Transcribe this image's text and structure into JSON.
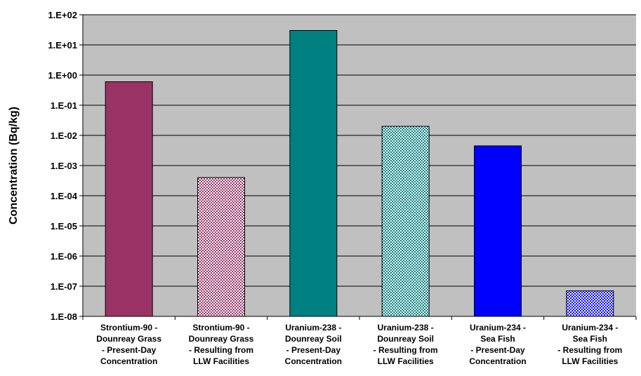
{
  "chart_data": {
    "type": "bar",
    "title": "",
    "xlabel": "",
    "ylabel": "Concentration (Bq/kg)",
    "y_scale": "log",
    "ylim": [
      1e-08,
      100
    ],
    "y_ticks": [
      "1.E-08",
      "1.E-07",
      "1.E-06",
      "1.E-05",
      "1.E-04",
      "1.E-03",
      "1.E-02",
      "1.E-01",
      "1.E+00",
      "1.E+01",
      "1.E+02"
    ],
    "grid": true,
    "legend": "none",
    "plot_background": "#c0c0c0",
    "categories": [
      {
        "lines": [
          "Strontium-90 -",
          "Dounreay Grass",
          "- Present-Day",
          "Concentration"
        ],
        "value": 0.6,
        "color": "#993366",
        "pattern": "solid"
      },
      {
        "lines": [
          "Strontium-90 -",
          "Dounreay Grass",
          "- Resulting from",
          "LLW Facilities"
        ],
        "value": 0.0004,
        "color": "#993366",
        "pattern": "dotted"
      },
      {
        "lines": [
          "Uranium-238 -",
          "Dounreay Soil",
          "- Present-Day",
          "Concentration"
        ],
        "value": 30,
        "color": "#008080",
        "pattern": "solid"
      },
      {
        "lines": [
          "Uranium-238 -",
          "Dounreay Soil",
          "- Resulting from",
          "LLW Facilities"
        ],
        "value": 0.02,
        "color": "#008080",
        "pattern": "dotted"
      },
      {
        "lines": [
          "Uranium-234 -",
          "Sea Fish",
          "- Present-Day",
          "Concentration"
        ],
        "value": 0.0045,
        "color": "#0000ff",
        "pattern": "solid"
      },
      {
        "lines": [
          "Uranium-234 -",
          "Sea Fish",
          "- Resulting from",
          "LLW Facilities"
        ],
        "value": 7e-08,
        "color": "#0000ff",
        "pattern": "dotted"
      }
    ]
  }
}
